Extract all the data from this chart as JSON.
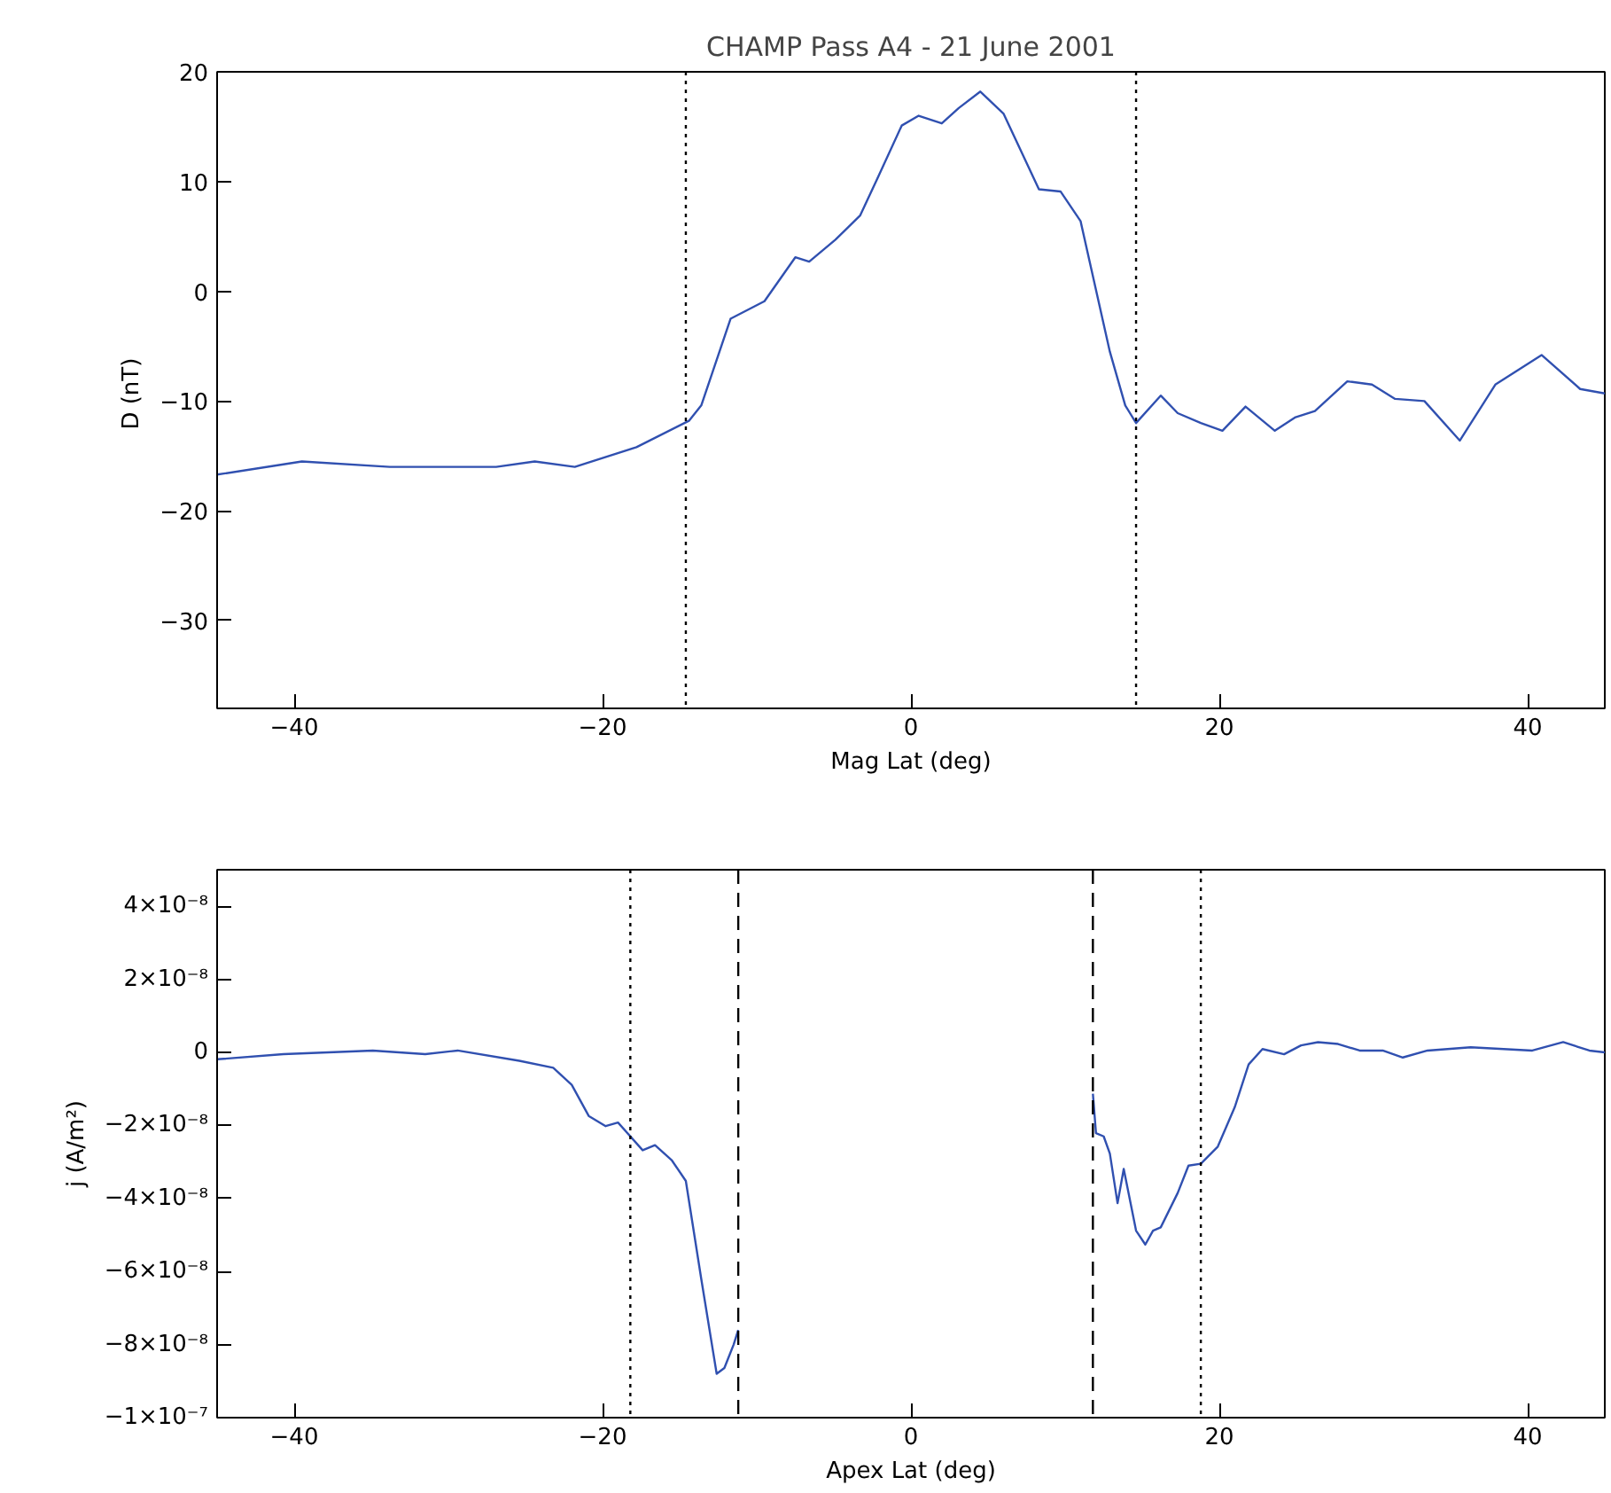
{
  "chart_data": [
    {
      "type": "line",
      "title": "CHAMP Pass A4 - 21 June 2001",
      "xlabel": "Mag Lat (deg)",
      "ylabel": "D  (nT)",
      "x": [
        -45.0,
        -39.5,
        -33.8,
        -26.9,
        -24.4,
        -21.8,
        -17.8,
        -14.4,
        -13.6,
        -11.7,
        -9.5,
        -7.5,
        -6.6,
        -4.9,
        -3.3,
        -2.1,
        -0.6,
        0.5,
        2.0,
        3.1,
        4.5,
        6.0,
        8.3,
        9.7,
        11.0,
        12.9,
        13.9,
        14.6,
        16.2,
        17.3,
        18.8,
        20.2,
        21.7,
        23.6,
        24.9,
        26.2,
        28.3,
        29.9,
        31.4,
        33.3,
        35.6,
        37.9,
        40.9,
        43.4,
        45.0
      ],
      "series": [
        {
          "color": "#3050b0",
          "values": [
            -16.7,
            -15.5,
            -16.0,
            -16.0,
            -15.5,
            -16.0,
            -14.2,
            -11.8,
            -10.4,
            -2.5,
            -0.9,
            3.1,
            2.7,
            4.7,
            6.9,
            10.5,
            15.1,
            16.0,
            15.3,
            16.7,
            18.2,
            16.2,
            9.3,
            9.1,
            6.4,
            -5.5,
            -10.4,
            -12.0,
            -9.5,
            -11.1,
            -12.0,
            -12.7,
            -10.5,
            -12.7,
            -11.5,
            -10.9,
            -8.2,
            -8.5,
            -9.8,
            -10.0,
            -13.6,
            -8.5,
            -5.8,
            -8.9,
            -9.3
          ]
        }
      ],
      "xlim": [
        -45,
        45
      ],
      "xticks": [
        -40,
        -20,
        0,
        20,
        40
      ],
      "ylim": [
        -38,
        20
      ],
      "yticks": [
        -30,
        -20,
        -10,
        0,
        10,
        20
      ],
      "ref_lines": [
        {
          "axis": "x",
          "value": -14.6,
          "color": "#000000",
          "line_style": "dotted"
        },
        {
          "axis": "x",
          "value": 14.6,
          "color": "#000000",
          "line_style": "dotted"
        }
      ]
    },
    {
      "type": "line",
      "xlabel": "Apex Lat (deg)",
      "ylabel": "j (A/m²)",
      "x": [
        -45.0,
        -40.7,
        -34.9,
        -31.5,
        -29.4,
        -25.4,
        -23.2,
        -22.0,
        -20.9,
        -19.8,
        -19.0,
        -17.4,
        -16.6,
        -15.5,
        -14.6,
        -13.6,
        -12.6,
        -12.1,
        -11.5,
        -11.2,
        0,
        11.8,
        12.0,
        12.5,
        12.9,
        13.4,
        13.8,
        14.6,
        15.2,
        15.7,
        16.2,
        17.3,
        18.0,
        18.8,
        19.9,
        21.0,
        21.9,
        22.8,
        24.2,
        25.3,
        26.4,
        27.7,
        29.1,
        30.6,
        31.9,
        33.5,
        36.3,
        40.3,
        42.3,
        44.0,
        45.0
      ],
      "series": [
        {
          "color": "#3050b0",
          "values": [
            -1.9e-09,
            -5e-10,
            5e-10,
            -5e-10,
            5e-10,
            -2.3e-09,
            -4.2e-09,
            -8.9e-09,
            -1.74e-08,
            -2.02e-08,
            -1.92e-08,
            -2.68e-08,
            -2.54e-08,
            -2.96e-08,
            -3.52e-08,
            -6.2e-08,
            -8.8e-08,
            -8.64e-08,
            -8e-08,
            -7.6e-08,
            null,
            -1.13e-08,
            -2.21e-08,
            -2.3e-08,
            -2.77e-08,
            -4.13e-08,
            -3.19e-08,
            -4.88e-08,
            -5.26e-08,
            -4.88e-08,
            -4.79e-08,
            -3.85e-08,
            -3.1e-08,
            -3.05e-08,
            -2.58e-08,
            -1.5e-08,
            -3.3e-09,
            9e-10,
            -5e-10,
            1.9e-09,
            2.8e-09,
            2.3e-09,
            5e-10,
            5e-10,
            -1.4e-09,
            5e-10,
            1.4e-09,
            5e-10,
            2.8e-09,
            5e-10,
            0.0
          ]
        }
      ],
      "xlim": [
        -45,
        45
      ],
      "xticks": [
        -40,
        -20,
        0,
        20,
        40
      ],
      "ylim": [
        -1e-07,
        5e-08
      ],
      "yticks": [
        {
          "value": -1e-07,
          "label": "−1×10⁻⁷"
        },
        {
          "value": -8e-08,
          "label": "−8×10⁻⁸"
        },
        {
          "value": -6e-08,
          "label": "−6×10⁻⁸"
        },
        {
          "value": -4e-08,
          "label": "−4×10⁻⁸"
        },
        {
          "value": -2e-08,
          "label": "−2×10⁻⁸"
        },
        {
          "value": 0,
          "label": "0"
        },
        {
          "value": 2e-08,
          "label": "2×10⁻⁸"
        },
        {
          "value": 4e-08,
          "label": "4×10⁻⁸"
        }
      ],
      "ref_lines": [
        {
          "axis": "x",
          "value": -18.2,
          "color": "#000000",
          "line_style": "dotted"
        },
        {
          "axis": "x",
          "value": 18.8,
          "color": "#000000",
          "line_style": "dotted"
        },
        {
          "axis": "x",
          "value": -11.2,
          "color": "#000000",
          "line_style": "dashed"
        },
        {
          "axis": "x",
          "value": 11.8,
          "color": "#000000",
          "line_style": "dashed"
        }
      ]
    }
  ]
}
